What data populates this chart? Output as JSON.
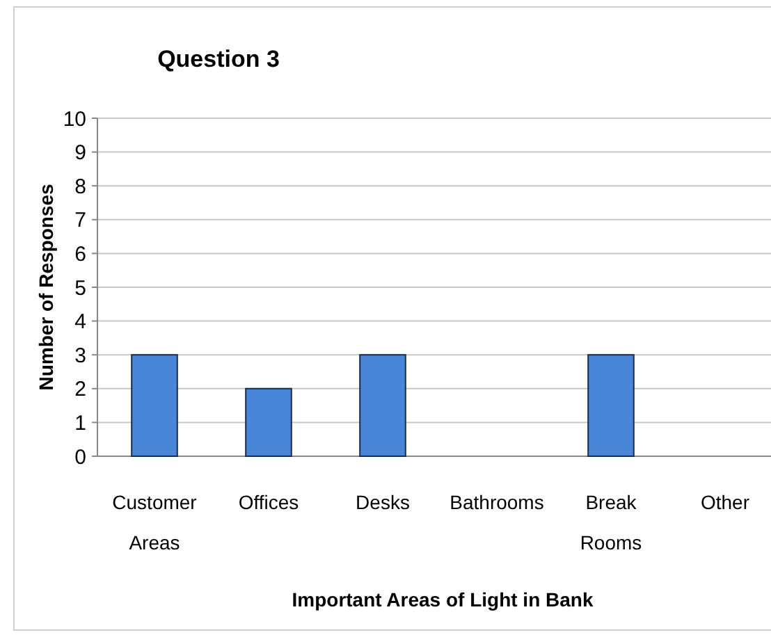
{
  "chart_data": {
    "type": "bar",
    "title": "Question 3",
    "xlabel": "Important Areas of Light in Bank",
    "ylabel": "Number of Responses",
    "categories": [
      "Customer Areas",
      "Offices",
      "Desks",
      "Bathrooms",
      "Break Rooms",
      "Other"
    ],
    "values": [
      3,
      2,
      3,
      0,
      3,
      0
    ],
    "color": "#4a86d8",
    "ylim": [
      0,
      10
    ],
    "yticks": [
      0,
      1,
      2,
      3,
      4,
      5,
      6,
      7,
      8,
      9,
      10
    ],
    "grid": "y"
  }
}
